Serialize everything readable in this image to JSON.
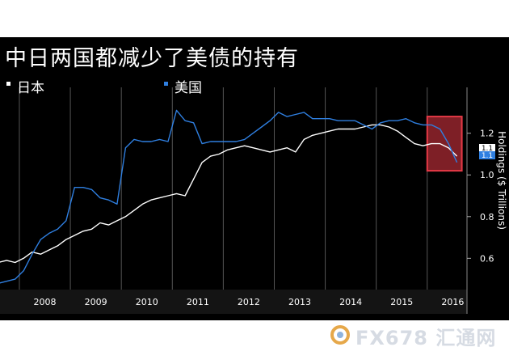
{
  "title": "中日两国都减少了美债的持有",
  "legend": [
    {
      "label": "日本",
      "color": "#ffffff"
    },
    {
      "label": "美国",
      "color": "#2f7fe0"
    }
  ],
  "watermark": "FX678 汇通网",
  "chart_data": {
    "type": "line",
    "title": "中日两国都减少了美债的持有",
    "ylabel": "Holdings ($ Trillions)",
    "ylim": [
      0.45,
      1.42
    ],
    "xlim": [
      2007.62,
      2016.78
    ],
    "yticks": [
      0.6,
      0.8,
      1.0,
      1.2
    ],
    "ytick_labels": [
      "0.6",
      "0.8",
      "1.0",
      "1.2"
    ],
    "xtick_labels": [
      "2008",
      "2009",
      "2010",
      "2011",
      "2012",
      "2013",
      "2014",
      "2015",
      "2016"
    ],
    "grid": "vertical",
    "highlight": {
      "x_from": "2016-01",
      "x_to": "2016-08",
      "color": "#e53946"
    },
    "end_labels": [
      {
        "series": "日本",
        "value": "1.1",
        "color": "#ffffff"
      },
      {
        "series": "美国",
        "value": "1.1",
        "color": "#2f7fe0"
      }
    ],
    "series": [
      {
        "name": "日本",
        "color": "#ffffff",
        "x": [
          "2007-08",
          "2007-10",
          "2007-12",
          "2008-02",
          "2008-04",
          "2008-06",
          "2008-08",
          "2008-10",
          "2008-12",
          "2009-02",
          "2009-04",
          "2009-06",
          "2009-08",
          "2009-10",
          "2009-12",
          "2010-02",
          "2010-04",
          "2010-06",
          "2010-08",
          "2010-10",
          "2010-12",
          "2011-02",
          "2011-04",
          "2011-06",
          "2011-08",
          "2011-10",
          "2011-12",
          "2012-02",
          "2012-04",
          "2012-06",
          "2012-08",
          "2012-10",
          "2012-12",
          "2013-02",
          "2013-04",
          "2013-06",
          "2013-08",
          "2013-10",
          "2013-12",
          "2014-02",
          "2014-04",
          "2014-06",
          "2014-08",
          "2014-10",
          "2014-12",
          "2015-02",
          "2015-04",
          "2015-06",
          "2015-08",
          "2015-10",
          "2015-12",
          "2016-02",
          "2016-04",
          "2016-06",
          "2016-08"
        ],
        "values": [
          0.58,
          0.59,
          0.58,
          0.6,
          0.63,
          0.62,
          0.64,
          0.66,
          0.69,
          0.71,
          0.73,
          0.74,
          0.77,
          0.76,
          0.78,
          0.8,
          0.83,
          0.86,
          0.88,
          0.89,
          0.9,
          0.91,
          0.9,
          0.98,
          1.06,
          1.09,
          1.1,
          1.12,
          1.13,
          1.14,
          1.13,
          1.12,
          1.11,
          1.12,
          1.13,
          1.11,
          1.17,
          1.19,
          1.2,
          1.21,
          1.22,
          1.22,
          1.22,
          1.23,
          1.24,
          1.24,
          1.23,
          1.21,
          1.18,
          1.15,
          1.14,
          1.15,
          1.15,
          1.13,
          1.09
        ]
      },
      {
        "name": "美国",
        "color": "#2f7fe0",
        "x": [
          "2007-08",
          "2007-10",
          "2007-12",
          "2008-02",
          "2008-04",
          "2008-06",
          "2008-08",
          "2008-10",
          "2008-12",
          "2009-02",
          "2009-04",
          "2009-06",
          "2009-08",
          "2009-10",
          "2009-12",
          "2010-02",
          "2010-04",
          "2010-06",
          "2010-08",
          "2010-10",
          "2010-12",
          "2011-02",
          "2011-04",
          "2011-06",
          "2011-08",
          "2011-10",
          "2011-12",
          "2012-02",
          "2012-04",
          "2012-06",
          "2012-08",
          "2012-10",
          "2012-12",
          "2013-02",
          "2013-04",
          "2013-06",
          "2013-08",
          "2013-10",
          "2013-12",
          "2014-02",
          "2014-04",
          "2014-06",
          "2014-08",
          "2014-10",
          "2014-12",
          "2015-02",
          "2015-04",
          "2015-06",
          "2015-08",
          "2015-10",
          "2015-12",
          "2016-02",
          "2016-04",
          "2016-06",
          "2016-08"
        ],
        "values": [
          0.48,
          0.49,
          0.5,
          0.54,
          0.62,
          0.69,
          0.72,
          0.74,
          0.78,
          0.94,
          0.94,
          0.93,
          0.89,
          0.88,
          0.86,
          1.13,
          1.17,
          1.16,
          1.16,
          1.17,
          1.16,
          1.31,
          1.26,
          1.25,
          1.15,
          1.16,
          1.16,
          1.16,
          1.16,
          1.17,
          1.2,
          1.23,
          1.26,
          1.3,
          1.28,
          1.29,
          1.3,
          1.27,
          1.27,
          1.27,
          1.26,
          1.26,
          1.26,
          1.24,
          1.22,
          1.25,
          1.26,
          1.26,
          1.27,
          1.25,
          1.24,
          1.24,
          1.22,
          1.15,
          1.06
        ]
      }
    ]
  }
}
